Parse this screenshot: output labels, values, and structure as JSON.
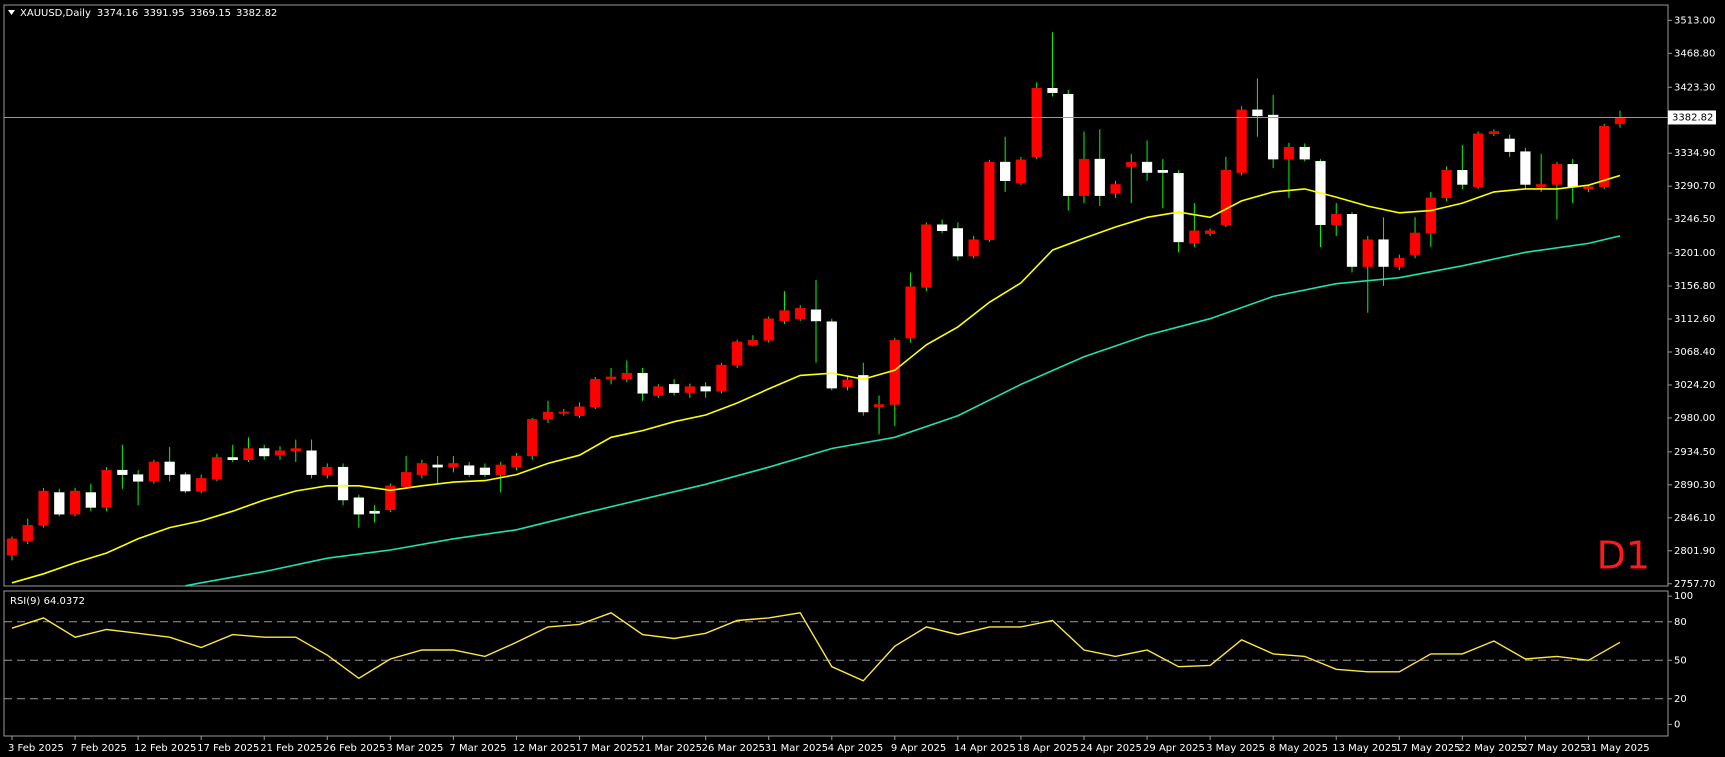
{
  "chart_data": [
    {
      "type": "candlestick",
      "symbol": "XAUUSD,Daily",
      "annotation": "D1",
      "categories": [
        "3 Feb 2025",
        null,
        null,
        null,
        "7 Feb 2025",
        null,
        null,
        null,
        "12 Feb 2025",
        null,
        null,
        null,
        "17 Feb 2025",
        null,
        null,
        null,
        "21 Feb 2025",
        null,
        null,
        null,
        "26 Feb 2025",
        null,
        null,
        null,
        "3 Mar 2025",
        null,
        null,
        null,
        "7 Mar 2025",
        null,
        null,
        null,
        "12 Mar 2025",
        null,
        null,
        null,
        "17 Mar 2025",
        null,
        null,
        null,
        "21 Mar 2025",
        null,
        null,
        null,
        "26 Mar 2025",
        null,
        null,
        null,
        "31 Mar 2025",
        null,
        null,
        null,
        "4 Apr 2025",
        null,
        null,
        null,
        "9 Apr 2025",
        null,
        null,
        null,
        "14 Apr 2025",
        null,
        null,
        null,
        "18 Apr 2025",
        null,
        null,
        null,
        "24 Apr 2025",
        null,
        null,
        null,
        "29 Apr 2025",
        null,
        null,
        null,
        "3 May 2025",
        null,
        null,
        null,
        "8 May 2025",
        null,
        null,
        null,
        "13 May 2025",
        null,
        null,
        null,
        "17 May 2025",
        null,
        null,
        null,
        "22 May 2025",
        null,
        null,
        null,
        "27 May 2025",
        null,
        null,
        null,
        "31 May 2025",
        null,
        null
      ],
      "open": [
        2796,
        2815,
        2836,
        2880,
        2851,
        2880,
        2860,
        2910,
        2904,
        2895,
        2921,
        2904,
        2882,
        2898,
        2927,
        2924,
        2939,
        2930,
        2936,
        2936,
        2904,
        2914,
        2873,
        2855,
        2857,
        2888,
        2904,
        2917,
        2914,
        2916,
        2913,
        2904,
        2914,
        2929,
        2978,
        2986,
        2983,
        2995,
        3032,
        3032,
        3040,
        3010,
        3025,
        3014,
        3022,
        3016,
        3051,
        3078,
        3084,
        3110,
        3113,
        3125,
        3109,
        3022,
        3037,
        2995,
        2998,
        3087,
        3155,
        3239,
        3234,
        3197,
        3219,
        3323,
        3295,
        3330,
        3422,
        3414,
        3278,
        3327,
        3281,
        3317,
        3323,
        3312,
        3308,
        3214,
        3227,
        3239,
        3309,
        3393,
        3386,
        3327,
        3343,
        3324,
        3239,
        3253,
        3183,
        3219,
        3183,
        3199,
        3228,
        3275,
        3312,
        3290,
        3361,
        3354,
        3337,
        3290,
        3293,
        3320,
        3287,
        3290,
        3374.16
      ],
      "high": [
        2821,
        2845,
        2886,
        2885,
        2886,
        2892,
        2914,
        2944,
        2910,
        2924,
        2941,
        2907,
        2904,
        2932,
        2944,
        2954,
        2944,
        2942,
        2951,
        2951,
        2919,
        2919,
        2877,
        2863,
        2892,
        2929,
        2924,
        2929,
        2929,
        2921,
        2919,
        2921,
        2933,
        2980,
        3003,
        2992,
        3001,
        3035,
        3047,
        3057,
        3047,
        3025,
        3032,
        3026,
        3028,
        3054,
        3085,
        3091,
        3116,
        3150,
        3131,
        3165,
        3113,
        3035,
        3054,
        3010,
        3087,
        3175,
        3242,
        3246,
        3242,
        3224,
        3326,
        3357,
        3330,
        3430,
        3497,
        3420,
        3364,
        3367,
        3298,
        3334,
        3352,
        3327,
        3312,
        3268,
        3234,
        3330,
        3398,
        3435,
        3413,
        3349,
        3348,
        3327,
        3268,
        3256,
        3224,
        3249,
        3199,
        3249,
        3283,
        3317,
        3346,
        3364,
        3367,
        3360,
        3342,
        3334,
        3323,
        3327,
        3293,
        3374,
        3391.95
      ],
      "low": [
        2789,
        2811,
        2833,
        2848,
        2848,
        2855,
        2855,
        2885,
        2863,
        2892,
        2895,
        2879,
        2879,
        2895,
        2921,
        2921,
        2924,
        2924,
        2921,
        2899,
        2899,
        2863,
        2833,
        2840,
        2854,
        2885,
        2899,
        2892,
        2907,
        2901,
        2901,
        2880,
        2910,
        2924,
        2973,
        2983,
        2980,
        2992,
        3025,
        3028,
        3003,
        3007,
        3010,
        3007,
        3007,
        3013,
        3047,
        3076,
        3081,
        3106,
        3110,
        3054,
        3017,
        3017,
        2983,
        2958,
        2969,
        3081,
        3150,
        3228,
        3191,
        3194,
        3216,
        3283,
        3292,
        3327,
        3411,
        3258,
        3268,
        3264,
        3275,
        3268,
        3298,
        3261,
        3202,
        3209,
        3224,
        3236,
        3305,
        3357,
        3315,
        3275,
        3324,
        3209,
        3224,
        3175,
        3121,
        3157,
        3178,
        3194,
        3209,
        3271,
        3287,
        3287,
        3358,
        3330,
        3287,
        3283,
        3246,
        3268,
        3283,
        3287,
        3369.15
      ],
      "close": [
        2818,
        2836,
        2882,
        2851,
        2882,
        2860,
        2910,
        2904,
        2895,
        2921,
        2904,
        2882,
        2899,
        2927,
        2924,
        2939,
        2929,
        2936,
        2939,
        2904,
        2914,
        2870,
        2851,
        2852,
        2889,
        2907,
        2919,
        2914,
        2919,
        2904,
        2904,
        2917,
        2929,
        2978,
        2988,
        2988,
        2995,
        3032,
        3035,
        3040,
        3013,
        3022,
        3014,
        3022,
        3016,
        3051,
        3082,
        3084,
        3113,
        3124,
        3127,
        3110,
        3020,
        3031,
        2988,
        2998,
        3084,
        3156,
        3239,
        3231,
        3197,
        3219,
        3323,
        3298,
        3326,
        3422,
        3416,
        3278,
        3327,
        3278,
        3293,
        3323,
        3309,
        3309,
        3216,
        3231,
        3231,
        3312,
        3393,
        3385,
        3327,
        3343,
        3327,
        3239,
        3253,
        3183,
        3219,
        3183,
        3194,
        3228,
        3275,
        3312,
        3293,
        3361,
        3364,
        3337,
        3293,
        3293,
        3320,
        3290,
        3290,
        3371,
        3382.82
      ],
      "up_color": "#ff0000",
      "down_color": "#ffffff",
      "wick_color": "#00ff00",
      "lines": [
        {
          "color": "#ffff00",
          "x": [
            0,
            2,
            4,
            6,
            8,
            10,
            12,
            14,
            16,
            18,
            20,
            22,
            24,
            26,
            28,
            30,
            32,
            34,
            36,
            38,
            40,
            42,
            44,
            46,
            48,
            50,
            52,
            54,
            56,
            58,
            60,
            62,
            64,
            66,
            68,
            70,
            72,
            74,
            76,
            78,
            80,
            82,
            84,
            86,
            88,
            90,
            92,
            94,
            96,
            98,
            100,
            102
          ],
          "values": [
            2759,
            2771,
            2786,
            2799,
            2818,
            2833,
            2842,
            2855,
            2870,
            2882,
            2889,
            2889,
            2883,
            2889,
            2894,
            2896,
            2904,
            2919,
            2930,
            2954,
            2963,
            2975,
            2984,
            3000,
            3019,
            3037,
            3040,
            3032,
            3044,
            3078,
            3102,
            3135,
            3161,
            3205,
            3221,
            3236,
            3249,
            3256,
            3249,
            3271,
            3283,
            3287,
            3276,
            3264,
            3255,
            3258,
            3268,
            3283,
            3287,
            3287,
            3292,
            3305
          ]
        },
        {
          "color": "#20e0b0",
          "x": [
            11,
            12,
            16,
            20,
            24,
            28,
            32,
            36,
            40,
            44,
            48,
            52,
            56,
            60,
            64,
            68,
            72,
            76,
            80,
            84,
            88,
            92,
            96,
            100,
            102
          ],
          "values": [
            2755,
            2759,
            2774,
            2792,
            2803,
            2818,
            2830,
            2851,
            2871,
            2891,
            2914,
            2939,
            2954,
            2983,
            3025,
            3062,
            3091,
            3113,
            3143,
            3160,
            3168,
            3184,
            3202,
            3214,
            3224
          ]
        }
      ],
      "ylim": [
        2754.7,
        3533.6
      ],
      "yticks": [
        {
          "value": 2757.7,
          "label": "2757.70"
        },
        {
          "value": 2801.9,
          "label": "2801.90"
        },
        {
          "value": 2846.1,
          "label": "2846.10"
        },
        {
          "value": 2890.3,
          "label": "2890.30"
        },
        {
          "value": 2934.5,
          "label": "2934.50"
        },
        {
          "value": 2980,
          "label": "2980.00"
        },
        {
          "value": 3024.2,
          "label": "3024.20"
        },
        {
          "value": 3068.4,
          "label": "3068.40"
        },
        {
          "value": 3112.6,
          "label": "3112.60"
        },
        {
          "value": 3156.8,
          "label": "3156.80"
        },
        {
          "value": 3201,
          "label": "3201.00"
        },
        {
          "value": 3246.5,
          "label": "3246.50"
        },
        {
          "value": 3290.7,
          "label": "3290.70"
        },
        {
          "value": 3334.9,
          "label": "3334.90"
        },
        {
          "value": 3423.3,
          "label": "3423.30"
        },
        {
          "value": 3468.8,
          "label": "3468.80"
        },
        {
          "value": 3513,
          "label": "3513.00"
        }
      ]
    },
    {
      "type": "line",
      "title": "RSI(9) 64.0372",
      "color": "#ffe640",
      "x": [
        0,
        2,
        4,
        6,
        8,
        10,
        12,
        14,
        16,
        18,
        20,
        22,
        24,
        26,
        28,
        30,
        32,
        34,
        36,
        38,
        40,
        42,
        44,
        46,
        48,
        50,
        52,
        54,
        56,
        58,
        60,
        62,
        64,
        66,
        68,
        70,
        72,
        74,
        76,
        78,
        80,
        82,
        84,
        86,
        88,
        90,
        92,
        94,
        96,
        98,
        100,
        102
      ],
      "values": [
        75,
        83,
        68,
        74,
        71,
        68,
        60,
        70,
        68,
        68,
        54,
        36,
        51,
        58,
        58,
        53,
        64,
        76,
        78,
        87,
        70,
        67,
        71,
        81,
        83,
        87,
        45,
        34,
        61,
        76,
        70,
        76,
        76,
        81,
        58,
        53,
        58,
        45,
        46,
        66,
        55,
        53,
        43,
        41,
        41,
        55,
        55,
        65,
        51,
        53,
        50,
        64
      ],
      "ylim": [
        -9,
        104
      ],
      "yticks": [
        0,
        20,
        50,
        80,
        100
      ],
      "levels": [
        20,
        50,
        80
      ]
    }
  ]
}
